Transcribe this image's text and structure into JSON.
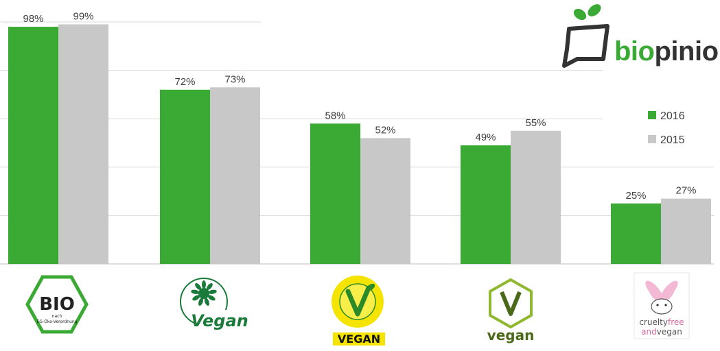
{
  "chart_data": {
    "type": "bar",
    "categories": [
      "BIO nach EG-Öko-Verordnung",
      "Vegan",
      "European Vegetarian Union – Vegetarisch – VEGAN",
      "vegan",
      "crueltyfree and vegan"
    ],
    "series": [
      {
        "name": "2016",
        "values": [
          98,
          72,
          58,
          49,
          25
        ],
        "labels": [
          "98%",
          "72%",
          "58%",
          "49%",
          "25%"
        ]
      },
      {
        "name": "2015",
        "values": [
          99,
          73,
          52,
          55,
          27
        ],
        "labels": [
          "99%",
          "73%",
          "52%",
          "55%",
          "27%"
        ]
      }
    ],
    "ylim": [
      0,
      100
    ],
    "grid": true,
    "legend": "right"
  },
  "colors": {
    "series_2016": "#3aaa35",
    "series_2015": "#c8c8c8",
    "grid": "#d9d9d9"
  },
  "brand": {
    "name": "biopinio",
    "part1": "bio",
    "part2": "pinio"
  },
  "logos": {
    "bio": {
      "icon": "bio-hexagon-seal",
      "line1": "nach",
      "line2": "EG-Öko-Verordnung"
    },
    "vegan_sunflower": {
      "icon": "sunflower-vegan-label"
    },
    "evu": {
      "icon": "european-vegetarian-union-v-label"
    },
    "vegan_v": {
      "icon": "vegan-v-badge-label"
    },
    "crueltyfree": {
      "icon": "bunny-cruelty-free-label"
    }
  }
}
